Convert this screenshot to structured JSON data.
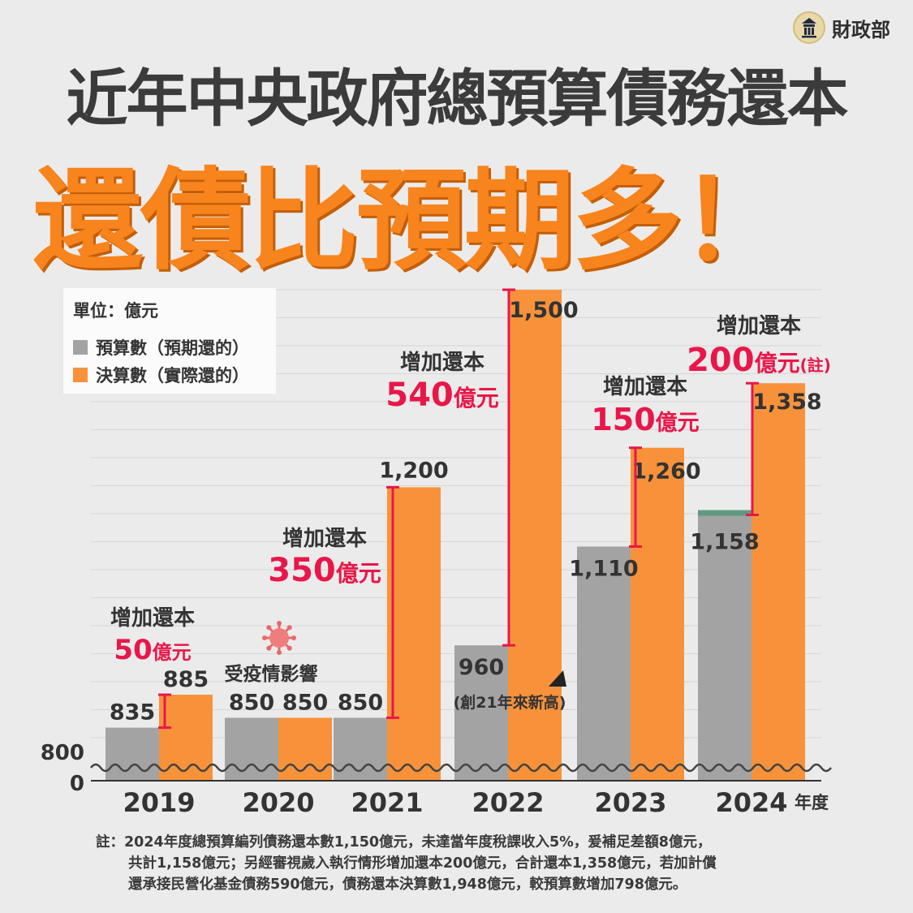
{
  "header": {
    "logo_text": "財政部",
    "title": "近年中央政府總預算債務還本",
    "subtitle": "還債比預期多！"
  },
  "legend": {
    "unit": "單位：億元",
    "items": [
      {
        "label": "預算數（預期還的）",
        "color": "#a3a3a3"
      },
      {
        "label": "決算數（實際還的）",
        "color": "#f8923a"
      }
    ]
  },
  "chart_data": {
    "type": "bar",
    "categories": [
      "2019",
      "2020",
      "2021",
      "2022",
      "2023",
      "2024"
    ],
    "xlabel": "年度",
    "y_ticks": [
      "800",
      "0"
    ],
    "axis_break": true,
    "ylim": [
      800,
      1500
    ],
    "series": [
      {
        "name": "預算數（預期還的）",
        "color": "#a3a3a3",
        "values": [
          835,
          850,
          850,
          960,
          1110,
          1158
        ]
      },
      {
        "name": "決算數（實際還的）",
        "color": "#f8923a",
        "values": [
          885,
          850,
          1200,
          1500,
          1260,
          1358
        ]
      }
    ],
    "bar_labels": {
      "budget": [
        "835",
        "850",
        "850",
        "960",
        "1,110",
        "1,158"
      ],
      "actual": [
        "885",
        "850",
        "1,200",
        "1,500",
        "1,260",
        "1,358"
      ]
    },
    "increase_header": "增加還本",
    "increases": [
      {
        "year": "2019",
        "amount": "50",
        "unit": "億元",
        "note": ""
      },
      {
        "year": "2021",
        "amount": "350",
        "unit": "億元",
        "note": ""
      },
      {
        "year": "2022",
        "amount": "540",
        "unit": "億元",
        "note": ""
      },
      {
        "year": "2023",
        "amount": "150",
        "unit": "億元",
        "note": ""
      },
      {
        "year": "2024",
        "amount": "200",
        "unit": "億元",
        "note": "(註)"
      }
    ],
    "annotations": {
      "covid": "受疫情影響",
      "record": "(創21年來新高)"
    },
    "accent_color": "#e8174a",
    "gap_segment_color": "#5f9a80"
  },
  "footnote": {
    "lines": [
      "註：2024年度總預算編列債務還本數1,150億元，未達當年度稅課收入5%，爰補足差額8億元，",
      "共計1,158億元；另經審視歲入執行情形增加還本200億元，合計還本1,358億元，若加計償",
      "還承接民營化基金債務590億元，債務還本決算數1,948億元，較預算數增加798億元。"
    ]
  }
}
